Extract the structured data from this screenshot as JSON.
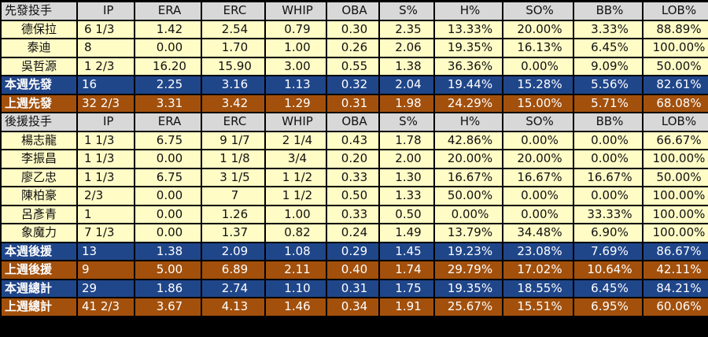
{
  "columns": [
    "IP",
    "ERA",
    "ERC",
    "WHIP",
    "OBA",
    "S%",
    "H%",
    "SO%",
    "BB%",
    "LOB%"
  ],
  "starters": {
    "title": "先發投手",
    "rows": [
      {
        "name": "德保拉",
        "values": [
          "6 1/3",
          "1.42",
          "2.54",
          "0.79",
          "0.30",
          "2.35",
          "13.33%",
          "20.00%",
          "3.33%",
          "88.89%"
        ]
      },
      {
        "name": "泰迪",
        "values": [
          "8",
          "0.00",
          "1.70",
          "1.00",
          "0.26",
          "2.06",
          "19.35%",
          "16.13%",
          "6.45%",
          "100.00%"
        ]
      },
      {
        "name": "吳哲源",
        "values": [
          "1 2/3",
          "16.20",
          "15.90",
          "3.00",
          "0.55",
          "1.38",
          "36.36%",
          "0.00%",
          "9.09%",
          "50.00%"
        ]
      }
    ],
    "summary": [
      {
        "label": "本週先發",
        "color": "blue",
        "values": [
          "16",
          "2.25",
          "3.16",
          "1.13",
          "0.32",
          "2.04",
          "19.44%",
          "15.28%",
          "5.56%",
          "82.61%"
        ]
      },
      {
        "label": "上週先發",
        "color": "orange",
        "values": [
          "32 2/3",
          "3.31",
          "3.42",
          "1.29",
          "0.31",
          "1.98",
          "24.29%",
          "15.00%",
          "5.71%",
          "68.08%"
        ]
      }
    ]
  },
  "relievers": {
    "title": "後援投手",
    "rows": [
      {
        "name": "楊志龍",
        "values": [
          "1 1/3",
          "6.75",
          "9 1/7",
          "2 1/4",
          "0.43",
          "1.78",
          "42.86%",
          "0.00%",
          "0.00%",
          "66.67%"
        ]
      },
      {
        "name": "李振昌",
        "values": [
          "1 1/3",
          "0.00",
          "1 1/8",
          "3/4",
          "0.20",
          "2.00",
          "20.00%",
          "20.00%",
          "0.00%",
          "100.00%"
        ]
      },
      {
        "name": "廖乙忠",
        "values": [
          "1 1/3",
          "6.75",
          "3 1/5",
          "1 1/2",
          "0.33",
          "1.30",
          "16.67%",
          "16.67%",
          "16.67%",
          "50.00%"
        ]
      },
      {
        "name": "陳柏豪",
        "values": [
          "2/3",
          "0.00",
          "7",
          "1 1/2",
          "0.50",
          "1.33",
          "50.00%",
          "0.00%",
          "0.00%",
          "100.00%"
        ]
      },
      {
        "name": "呂彥青",
        "values": [
          "1",
          "0.00",
          "1.26",
          "1.00",
          "0.33",
          "0.50",
          "0.00%",
          "0.00%",
          "33.33%",
          "100.00%"
        ]
      },
      {
        "name": "象魔力",
        "values": [
          "7 1/3",
          "0.00",
          "1.37",
          "0.82",
          "0.24",
          "1.49",
          "13.79%",
          "34.48%",
          "6.90%",
          "100.00%"
        ]
      }
    ],
    "summary": [
      {
        "label": "本週後援",
        "color": "blue",
        "values": [
          "13",
          "1.38",
          "2.09",
          "1.08",
          "0.29",
          "1.45",
          "19.23%",
          "23.08%",
          "7.69%",
          "86.67%"
        ]
      },
      {
        "label": "上週後援",
        "color": "orange",
        "values": [
          "9",
          "5.00",
          "6.89",
          "2.11",
          "0.40",
          "1.74",
          "29.79%",
          "17.02%",
          "10.64%",
          "42.11%"
        ]
      },
      {
        "label": "本週總計",
        "color": "blue",
        "values": [
          "29",
          "1.86",
          "2.74",
          "1.10",
          "0.31",
          "1.75",
          "19.35%",
          "18.55%",
          "6.45%",
          "84.21%"
        ]
      },
      {
        "label": "上週總計",
        "color": "orange",
        "values": [
          "41 2/3",
          "3.67",
          "4.13",
          "1.46",
          "0.34",
          "1.91",
          "25.67%",
          "15.51%",
          "6.95%",
          "60.06%"
        ]
      }
    ]
  },
  "colors": {
    "row_bg": "#fffcc6",
    "header_bg": "#d8d8d8",
    "blue": "#20468a",
    "orange": "#a2500c",
    "border": "#000000"
  }
}
